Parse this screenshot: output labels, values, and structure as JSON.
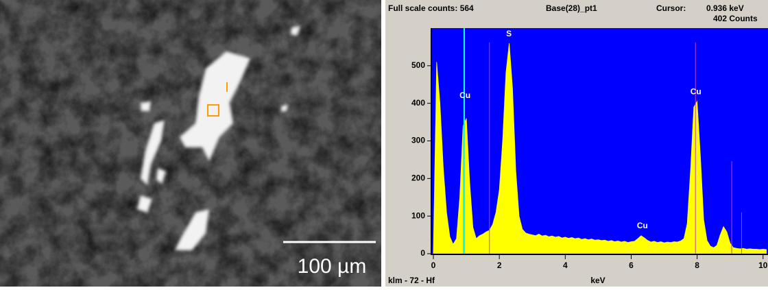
{
  "image": {
    "scale_label": "100 µm"
  },
  "chart_data": {
    "type": "area",
    "header": {
      "full_scale": "Full scale counts: 564",
      "sample": "Base(28)_pt1",
      "cursor_title": "Cursor:",
      "cursor": {
        "value": 0.936,
        "label": "0.936 keV"
      },
      "counts": {
        "value": 402,
        "label": "402 Counts"
      }
    },
    "footer": "klm - 72 - Hf",
    "x_label": "keV",
    "color": "#ffff00",
    "background": "#0000ff",
    "xlim": [
      0,
      10.15
    ],
    "ylim": [
      0,
      600
    ],
    "xticks": [
      0,
      2,
      4,
      6,
      8,
      10
    ],
    "yticks": [
      0,
      100,
      200,
      300,
      400,
      500
    ],
    "x": [
      0,
      0.1,
      0.2,
      0.3,
      0.4,
      0.5,
      0.6,
      0.7,
      0.8,
      0.9,
      1,
      1.1,
      1.2,
      1.3,
      1.4,
      1.5,
      1.6,
      1.7,
      1.8,
      1.9,
      2,
      2.1,
      2.2,
      2.3,
      2.4,
      2.5,
      2.6,
      2.7,
      2.8,
      2.9,
      3,
      3.1,
      3.2,
      3.3,
      3.4,
      3.5,
      3.6,
      3.7,
      3.8,
      3.9,
      4,
      4.1,
      4.2,
      4.3,
      4.4,
      4.5,
      4.6,
      4.7,
      4.8,
      4.9,
      5,
      5.1,
      5.2,
      5.3,
      5.4,
      5.5,
      5.6,
      5.7,
      5.8,
      5.9,
      6,
      6.1,
      6.2,
      6.3,
      6.4,
      6.5,
      6.6,
      6.7,
      6.8,
      6.9,
      7,
      7.1,
      7.2,
      7.3,
      7.4,
      7.5,
      7.6,
      7.7,
      7.8,
      7.9,
      8,
      8.1,
      8.2,
      8.3,
      8.4,
      8.5,
      8.6,
      8.7,
      8.8,
      8.9,
      9,
      9.1,
      9.2,
      9.3,
      9.4,
      9.5,
      9.6,
      9.7,
      9.8,
      9.9,
      10,
      10.1
    ],
    "values": [
      5,
      510,
      400,
      230,
      110,
      45,
      25,
      40,
      150,
      340,
      360,
      190,
      70,
      40,
      48,
      52,
      58,
      62,
      78,
      110,
      170,
      300,
      480,
      560,
      440,
      220,
      100,
      65,
      55,
      52,
      50,
      48,
      52,
      47,
      49,
      45,
      47,
      44,
      46,
      42,
      44,
      41,
      43,
      40,
      42,
      38,
      40,
      37,
      39,
      36,
      37,
      35,
      36,
      33,
      35,
      32,
      34,
      31,
      33,
      30,
      32,
      33,
      40,
      48,
      42,
      35,
      31,
      33,
      30,
      32,
      29,
      31,
      30,
      32,
      31,
      34,
      40,
      80,
      220,
      390,
      405,
      260,
      90,
      35,
      20,
      16,
      22,
      50,
      72,
      58,
      28,
      16,
      14,
      13,
      14,
      12,
      13,
      12,
      12,
      11,
      12,
      11
    ],
    "marker_lines": [
      {
        "x": 0.93,
        "height": 400,
        "color": "#ff0000"
      },
      {
        "x": 1.7,
        "height": 562,
        "color": "#c040c0"
      },
      {
        "x": 7.95,
        "height": 562,
        "color": "#c040c0"
      },
      {
        "x": 9.05,
        "height": 246,
        "color": "#c040c0"
      },
      {
        "x": 9.35,
        "height": 110,
        "color": "#c040c0"
      }
    ],
    "cursor_color": "#00ffff",
    "annotations": [
      {
        "text": "Cu",
        "x": 0.96,
        "y": 420
      },
      {
        "text": "S",
        "x": 2.29,
        "y": 584
      },
      {
        "text": "Cu",
        "x": 6.34,
        "y": 73
      },
      {
        "text": "Cu",
        "x": 7.96,
        "y": 430
      }
    ]
  }
}
